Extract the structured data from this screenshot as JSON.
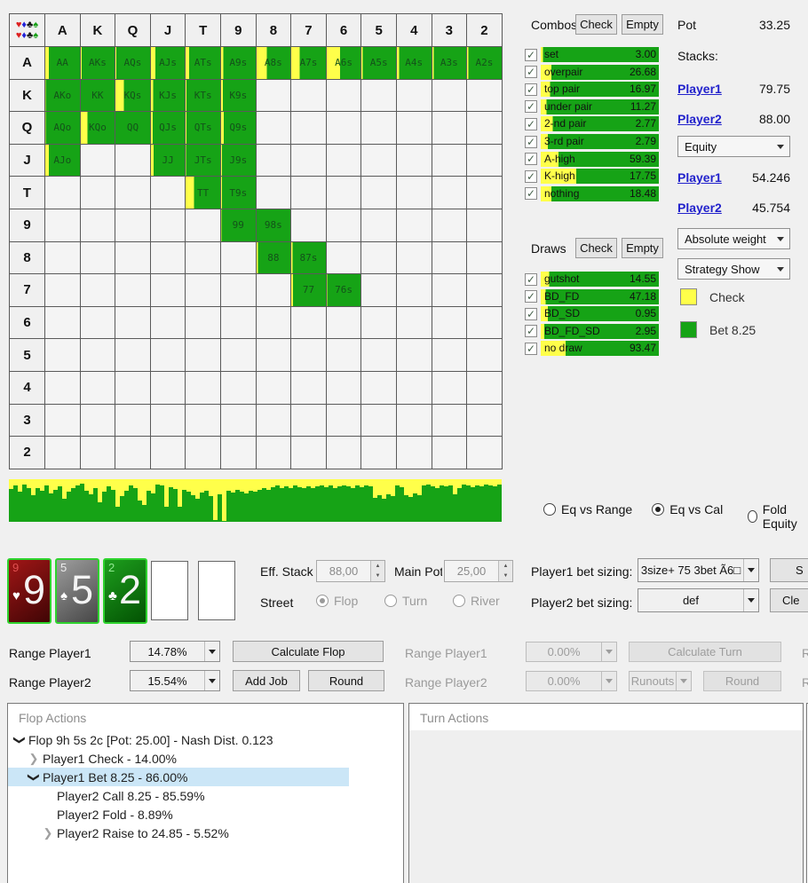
{
  "colors": {
    "check_yellow": "#ffff4a",
    "bet_green": "#16a316",
    "grid_text": "#14521a",
    "selection_blue": "#cbe6f7"
  },
  "grid": {
    "ranks": [
      "A",
      "K",
      "Q",
      "J",
      "T",
      "9",
      "8",
      "7",
      "6",
      "5",
      "4",
      "3",
      "2"
    ],
    "corner_suits": [
      "♥",
      "♦",
      "♣",
      "♠"
    ],
    "rows": [
      {
        "rank": "A",
        "cells": [
          {
            "h": "AA",
            "y": 10
          },
          {
            "h": "AKs",
            "y": 2
          },
          {
            "h": "AQs",
            "y": 2
          },
          {
            "h": "AJs",
            "y": 13
          },
          {
            "h": "ATs",
            "y": 10
          },
          {
            "h": "A9s",
            "y": 6
          },
          {
            "h": "A8s",
            "y": 30
          },
          {
            "h": "A7s",
            "y": 25
          },
          {
            "h": "A6s",
            "y": 40
          },
          {
            "h": "A5s",
            "y": 4
          },
          {
            "h": "A4s",
            "y": 6
          },
          {
            "h": "A3s",
            "y": 4
          },
          {
            "h": "A2s",
            "y": 4
          }
        ]
      },
      {
        "rank": "K",
        "cells": [
          {
            "h": "AKo",
            "y": 1
          },
          {
            "h": "KK",
            "y": 0
          },
          {
            "h": "KQs",
            "y": 25
          },
          {
            "h": "KJs",
            "y": 6
          },
          {
            "h": "KTs",
            "y": 3
          },
          {
            "h": "K9s",
            "y": 5
          },
          null,
          null,
          null,
          null,
          null,
          null,
          null
        ]
      },
      {
        "rank": "Q",
        "cells": [
          {
            "h": "AQo",
            "y": 1
          },
          {
            "h": "KQo",
            "y": 20
          },
          {
            "h": "QQ",
            "y": 0
          },
          {
            "h": "QJs",
            "y": 5
          },
          {
            "h": "QTs",
            "y": 3
          },
          {
            "h": "Q9s",
            "y": 8
          },
          null,
          null,
          null,
          null,
          null,
          null,
          null
        ]
      },
      {
        "rank": "J",
        "cells": [
          {
            "h": "AJo",
            "y": 10
          },
          null,
          null,
          {
            "h": "JJ",
            "y": 8
          },
          {
            "h": "JTs",
            "y": 1
          },
          {
            "h": "J9s",
            "y": 3
          },
          null,
          null,
          null,
          null,
          null,
          null,
          null
        ]
      },
      {
        "rank": "T",
        "cells": [
          null,
          null,
          null,
          null,
          {
            "h": "TT",
            "y": 25
          },
          {
            "h": "T9s",
            "y": 2
          },
          null,
          null,
          null,
          null,
          null,
          null,
          null
        ]
      },
      {
        "rank": "9",
        "cells": [
          null,
          null,
          null,
          null,
          null,
          {
            "h": "99",
            "y": 1
          },
          {
            "h": "98s",
            "y": 0
          },
          null,
          null,
          null,
          null,
          null,
          null
        ]
      },
      {
        "rank": "8",
        "cells": [
          null,
          null,
          null,
          null,
          null,
          null,
          {
            "h": "88",
            "y": 4
          },
          {
            "h": "87s",
            "y": 4
          },
          null,
          null,
          null,
          null,
          null
        ]
      },
      {
        "rank": "7",
        "cells": [
          null,
          null,
          null,
          null,
          null,
          null,
          null,
          {
            "h": "77",
            "y": 5
          },
          {
            "h": "76s",
            "y": 1
          },
          null,
          null,
          null,
          null
        ]
      },
      {
        "rank": "6",
        "cells": [
          null,
          null,
          null,
          null,
          null,
          null,
          null,
          null,
          null,
          null,
          null,
          null,
          null
        ]
      },
      {
        "rank": "5",
        "cells": [
          null,
          null,
          null,
          null,
          null,
          null,
          null,
          null,
          null,
          null,
          null,
          null,
          null
        ]
      },
      {
        "rank": "4",
        "cells": [
          null,
          null,
          null,
          null,
          null,
          null,
          null,
          null,
          null,
          null,
          null,
          null,
          null
        ]
      },
      {
        "rank": "3",
        "cells": [
          null,
          null,
          null,
          null,
          null,
          null,
          null,
          null,
          null,
          null,
          null,
          null,
          null
        ]
      },
      {
        "rank": "2",
        "cells": [
          null,
          null,
          null,
          null,
          null,
          null,
          null,
          null,
          null,
          null,
          null,
          null,
          null
        ]
      }
    ]
  },
  "histogram": {
    "green_pct": [
      78,
      85,
      70,
      88,
      80,
      62,
      80,
      72,
      86,
      66,
      75,
      83,
      55,
      70,
      79,
      86,
      90,
      72,
      64,
      79,
      46,
      70,
      83,
      75,
      36,
      60,
      73,
      86,
      79,
      50,
      40,
      73,
      66,
      88,
      86,
      36,
      82,
      78,
      35,
      75,
      70,
      62,
      55,
      68,
      73,
      60,
      5,
      65,
      3,
      72,
      68,
      74,
      70,
      66,
      73,
      70,
      76,
      80,
      74,
      82,
      85,
      80,
      84,
      80,
      86,
      82,
      79,
      84,
      80,
      83,
      86,
      82,
      85,
      80,
      84,
      86,
      83,
      80,
      85,
      82,
      86,
      84,
      57,
      62,
      55,
      65,
      60,
      85,
      82,
      62,
      58,
      66,
      62,
      85,
      88,
      84,
      80,
      86,
      83,
      85,
      65,
      80,
      88,
      85,
      82,
      86,
      84,
      88,
      85,
      83,
      87
    ]
  },
  "combos": {
    "title": "Combos",
    "check_btn": "Check",
    "empty_btn": "Empty",
    "items": [
      {
        "label": "set",
        "value": "3.00",
        "check_pct": 2
      },
      {
        "label": "overpair",
        "value": "26.68",
        "check_pct": 9
      },
      {
        "label": "top pair",
        "value": "16.97",
        "check_pct": 8
      },
      {
        "label": "under pair",
        "value": "11.27",
        "check_pct": 5
      },
      {
        "label": "2-nd pair",
        "value": "2.77",
        "check_pct": 10
      },
      {
        "label": "3-rd pair",
        "value": "2.79",
        "check_pct": 6
      },
      {
        "label": "A-high",
        "value": "59.39",
        "check_pct": 15
      },
      {
        "label": "K-high",
        "value": "17.75",
        "check_pct": 30
      },
      {
        "label": "nothing",
        "value": "18.48",
        "check_pct": 9
      }
    ]
  },
  "draws": {
    "title": "Draws",
    "check_btn": "Check",
    "empty_btn": "Empty",
    "items": [
      {
        "label": "gutshot",
        "value": "14.55",
        "check_pct": 7
      },
      {
        "label": "BD_FD",
        "value": "47.18",
        "check_pct": 4
      },
      {
        "label": "BD_SD",
        "value": "0.95",
        "check_pct": 6
      },
      {
        "label": "BD_FD_SD",
        "value": "2.95",
        "check_pct": 3
      },
      {
        "label": "no draw",
        "value": "93.47",
        "check_pct": 21
      }
    ]
  },
  "info": {
    "pot_label": "Pot",
    "pot_value": "33.25",
    "stacks_label": "Stacks:",
    "player1": "Player1",
    "player1_stack": "79.75",
    "player2": "Player2",
    "player2_stack": "88.00",
    "equity_dd": "Equity",
    "player1_equity": "54.246",
    "player2_equity": "45.754",
    "weight_dd": "Absolute weight",
    "strategy_dd": "Strategy Show",
    "legend": [
      {
        "color_key": "check_yellow",
        "label": "Check"
      },
      {
        "color_key": "bet_green",
        "label": "Bet 8.25"
      }
    ]
  },
  "eq_radios": [
    {
      "label": "Eq vs Range",
      "selected": false
    },
    {
      "label": "Eq vs Cal",
      "selected": true
    },
    {
      "label": "Fold Equity",
      "selected": false
    }
  ],
  "board": {
    "cards": [
      {
        "rank": "9",
        "suit": "♥",
        "suit_name": "heart",
        "bg1": "#a01616",
        "bg2": "#400505",
        "corner_color": "#e05050"
      },
      {
        "rank": "5",
        "suit": "♠",
        "suit_name": "spade",
        "bg1": "#9d9d9d",
        "bg2": "#474747",
        "corner_color": "#ededed"
      },
      {
        "rank": "2",
        "suit": "♣",
        "suit_name": "club",
        "bg1": "#1d9e1d",
        "bg2": "#035203",
        "corner_color": "#90e890"
      }
    ],
    "empty_slots": 2
  },
  "controls": {
    "eff_stack_label": "Eff. Stack",
    "eff_stack_value": "88,00",
    "main_pot_label": "Main Pot",
    "main_pot_value": "25,00",
    "street_label": "Street",
    "streets": [
      {
        "label": "Flop",
        "selected": true
      },
      {
        "label": "Turn",
        "selected": false
      },
      {
        "label": "River",
        "selected": false
      }
    ],
    "p1_sizing_label": "Player1 bet sizing:",
    "p1_sizing_value": "3size+ 75 3bet Ã6□",
    "p2_sizing_label": "Player2 bet sizing:",
    "p2_sizing_value": "def",
    "clipped_btn1": "S",
    "clipped_btn2": "Cle"
  },
  "ranges": {
    "flop": {
      "p1_label": "Range Player1",
      "p1_value": "14.78%",
      "calc_btn": "Calculate Flop",
      "p2_label": "Range Player2",
      "p2_value": "15.54%",
      "addjob_btn": "Add Job",
      "round_btn": "Round"
    },
    "turn": {
      "p1_label": "Range Player1",
      "p1_value": "0.00%",
      "calc_btn": "Calculate Turn",
      "p2_label": "Range Player2",
      "p2_value": "0.00%",
      "runouts_dd": "Runouts",
      "round_btn": "Round"
    },
    "river_clip1": "R",
    "river_clip2": "R"
  },
  "actions": {
    "flop_title": "Flop Actions",
    "turn_title": "Turn Actions",
    "tree": [
      {
        "arrow": "exp",
        "indent": 0,
        "text": "Flop 9h 5s 2c [Pot: 25.00] - Nash Dist. 0.123",
        "selected": false
      },
      {
        "arrow": "col",
        "indent": 1,
        "text": "Player1 Check - 14.00%",
        "selected": false
      },
      {
        "arrow": "exp",
        "indent": 1,
        "text": "Player1 Bet 8.25 - 86.00%",
        "selected": true
      },
      {
        "arrow": "none",
        "indent": 2,
        "text": "Player2 Call 8.25 - 85.59%",
        "selected": false
      },
      {
        "arrow": "none",
        "indent": 2,
        "text": "Player2 Fold - 8.89%",
        "selected": false
      },
      {
        "arrow": "col",
        "indent": 2,
        "text": "Player2 Raise to 24.85 - 5.52%",
        "selected": false
      }
    ]
  }
}
